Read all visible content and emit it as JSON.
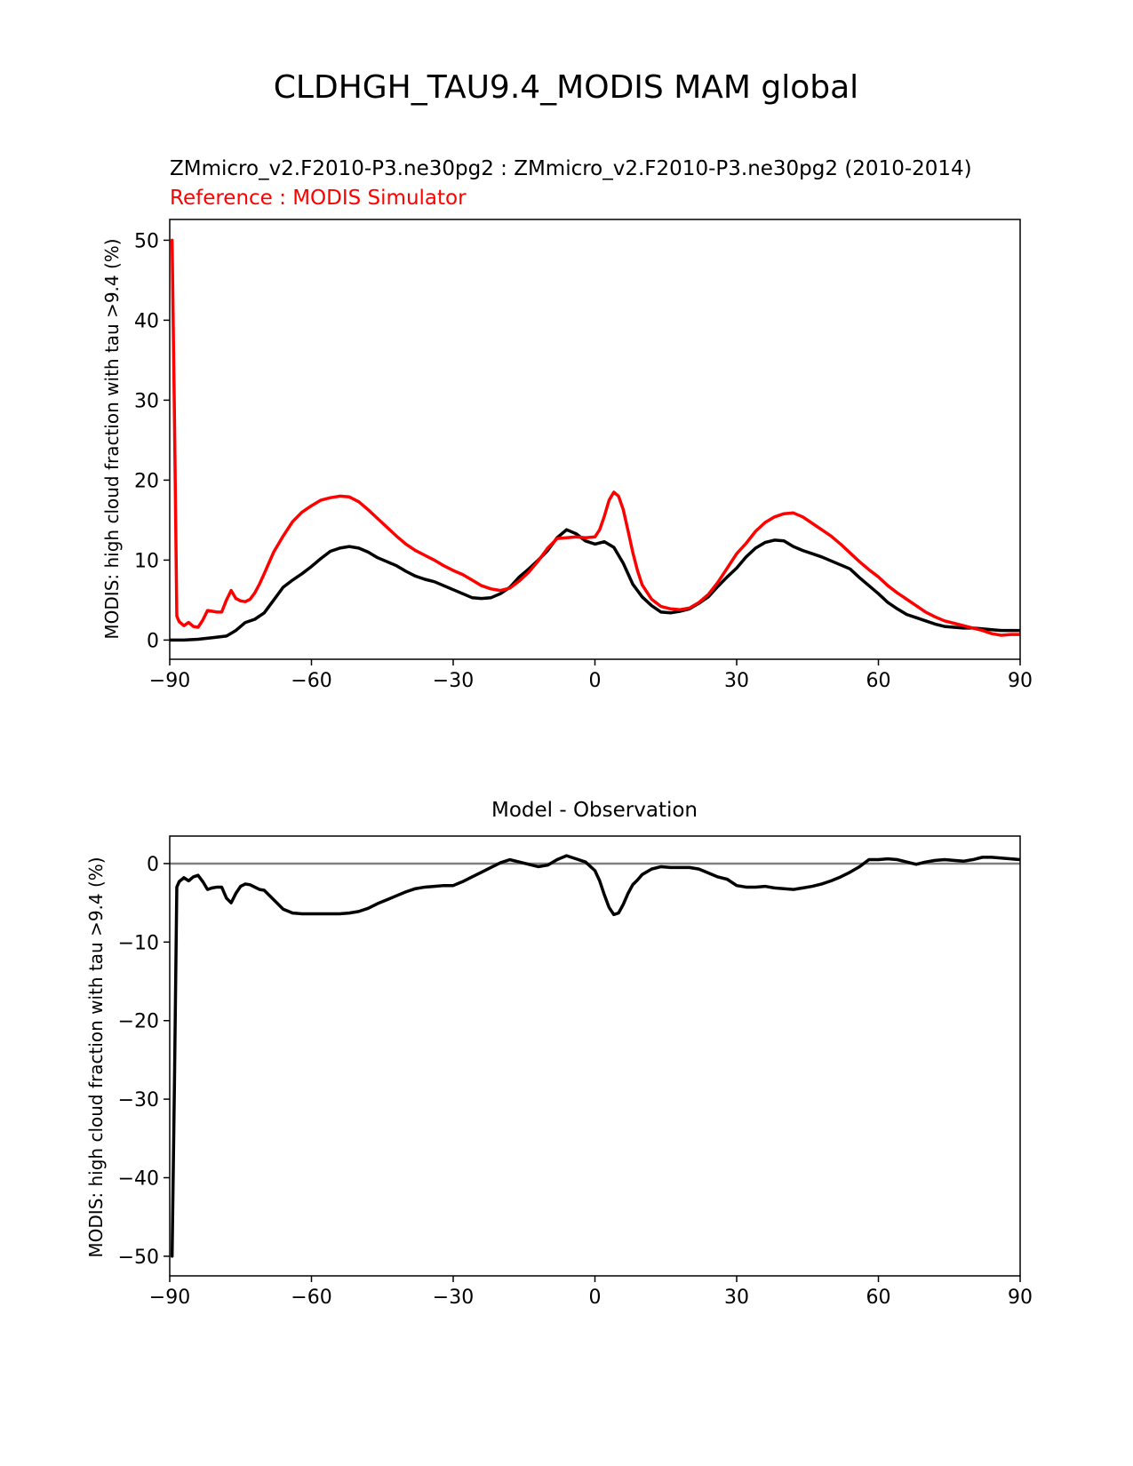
{
  "figure": {
    "suptitle": "CLDHGH_TAU9.4_MODIS MAM global"
  },
  "chart_data": [
    {
      "type": "line",
      "title_line1": "ZMmicro_v2.F2010-P3.ne30pg2 : ZMmicro_v2.F2010-P3.ne30pg2 (2010-2014)",
      "title_line2": "Reference : MODIS Simulator",
      "xlabel": "",
      "ylabel": "MODIS: high cloud fraction with tau >9.4 (%)",
      "xlim": [
        -90,
        90
      ],
      "ylim": [
        -2.4,
        52.6
      ],
      "xticks": [
        -90,
        -60,
        -30,
        0,
        30,
        60,
        90
      ],
      "xtick_labels": [
        "−90",
        "−60",
        "−30",
        "0",
        "30",
        "60",
        "90"
      ],
      "yticks": [
        0,
        10,
        20,
        30,
        40,
        50
      ],
      "ytick_labels": [
        "0",
        "10",
        "20",
        "30",
        "40",
        "50"
      ],
      "grid": false,
      "series": [
        {
          "color": "#000000",
          "x": [
            -90,
            -87,
            -84,
            -81,
            -78,
            -76,
            -74,
            -72,
            -70,
            -68,
            -66,
            -64,
            -62,
            -60,
            -58,
            -56,
            -54,
            -52,
            -50,
            -48,
            -46,
            -44,
            -42,
            -40,
            -38,
            -36,
            -34,
            -32,
            -30,
            -28,
            -26,
            -24,
            -22,
            -20,
            -18,
            -16,
            -14,
            -12,
            -10,
            -8,
            -6,
            -4,
            -2,
            0,
            2,
            4,
            6,
            8,
            10,
            12,
            14,
            16,
            18,
            20,
            22,
            24,
            26,
            28,
            30,
            32,
            34,
            36,
            38,
            40,
            42,
            44,
            46,
            48,
            50,
            52,
            54,
            56,
            58,
            60,
            62,
            64,
            66,
            68,
            70,
            72,
            74,
            76,
            78,
            80,
            82,
            84,
            86,
            88,
            90
          ],
          "y": [
            0,
            0,
            0.1,
            0.3,
            0.5,
            1.2,
            2.2,
            2.6,
            3.4,
            5,
            6.6,
            7.5,
            8.3,
            9.2,
            10.2,
            11.1,
            11.5,
            11.7,
            11.5,
            11,
            10.3,
            9.8,
            9.3,
            8.6,
            8,
            7.6,
            7.3,
            6.8,
            6.3,
            5.8,
            5.3,
            5.2,
            5.3,
            5.8,
            6.6,
            7.9,
            8.9,
            10,
            11.2,
            12.8,
            13.8,
            13.3,
            12.4,
            12,
            12.3,
            11.6,
            9.6,
            7,
            5.4,
            4.3,
            3.5,
            3.4,
            3.6,
            3.9,
            4.6,
            5.4,
            6.7,
            7.9,
            9,
            10.4,
            11.5,
            12.2,
            12.5,
            12.4,
            11.7,
            11.2,
            10.8,
            10.4,
            9.9,
            9.4,
            8.9,
            7.8,
            6.8,
            5.8,
            4.7,
            3.9,
            3.2,
            2.8,
            2.4,
            2,
            1.7,
            1.6,
            1.5,
            1.5,
            1.4,
            1.3,
            1.2,
            1.2,
            1.2
          ]
        },
        {
          "color": "#ff0000",
          "x": [
            -89.5,
            -89,
            -88.5,
            -88,
            -87,
            -86,
            -85,
            -84,
            -83,
            -82,
            -81,
            -80,
            -79,
            -78,
            -77,
            -76,
            -75,
            -74,
            -73,
            -72,
            -71,
            -70,
            -68,
            -66,
            -64,
            -62,
            -60,
            -58,
            -56,
            -54,
            -52,
            -50,
            -48,
            -46,
            -44,
            -42,
            -40,
            -38,
            -36,
            -34,
            -32,
            -30,
            -28,
            -26,
            -24,
            -22,
            -20,
            -18,
            -16,
            -14,
            -12,
            -10,
            -8,
            -6,
            -4,
            -2,
            0,
            1,
            2,
            3,
            4,
            5,
            6,
            7,
            8,
            9,
            10,
            12,
            14,
            16,
            18,
            20,
            22,
            24,
            26,
            28,
            30,
            32,
            34,
            36,
            38,
            40,
            42,
            44,
            46,
            48,
            50,
            52,
            54,
            56,
            58,
            60,
            62,
            64,
            66,
            68,
            70,
            72,
            74,
            76,
            78,
            80,
            82,
            84,
            86,
            88,
            90
          ],
          "y": [
            50,
            28,
            3,
            2.3,
            1.8,
            2.2,
            1.7,
            1.6,
            2.5,
            3.7,
            3.6,
            3.5,
            3.5,
            5,
            6.2,
            5.2,
            4.9,
            4.8,
            5.1,
            5.9,
            7,
            8.3,
            11,
            13,
            14.8,
            16,
            16.8,
            17.5,
            17.8,
            18,
            17.9,
            17.3,
            16.3,
            15.2,
            14.1,
            13,
            12,
            11.2,
            10.6,
            10,
            9.3,
            8.7,
            8.2,
            7.5,
            6.8,
            6.4,
            6.2,
            6.5,
            7.4,
            8.5,
            9.9,
            11.5,
            12.7,
            12.8,
            12.9,
            12.8,
            12.9,
            13.8,
            15.5,
            17.5,
            18.5,
            18,
            16.3,
            13.7,
            11,
            8.7,
            6.9,
            5.1,
            4.2,
            3.9,
            3.8,
            4,
            4.7,
            5.7,
            7.2,
            9,
            10.8,
            12.1,
            13.6,
            14.7,
            15.4,
            15.8,
            15.9,
            15.4,
            14.6,
            13.8,
            13,
            12,
            10.9,
            9.8,
            8.8,
            7.9,
            6.8,
            5.9,
            5.1,
            4.3,
            3.5,
            2.9,
            2.4,
            2.1,
            1.8,
            1.5,
            1.2,
            0.8,
            0.6,
            0.7,
            0.7
          ]
        }
      ]
    },
    {
      "type": "line",
      "title": "Model - Observation",
      "xlabel": "",
      "ylabel": "MODIS: high cloud fraction with tau >9.4 (%)",
      "xlim": [
        -90,
        90
      ],
      "ylim": [
        -52.5,
        3.5
      ],
      "xticks": [
        -90,
        -60,
        -30,
        0,
        30,
        60,
        90
      ],
      "xtick_labels": [
        "−90",
        "−60",
        "−30",
        "0",
        "30",
        "60",
        "90"
      ],
      "yticks": [
        0,
        -10,
        -20,
        -30,
        -40,
        -50
      ],
      "ytick_labels": [
        "0",
        "−10",
        "−20",
        "−30",
        "−40",
        "−50"
      ],
      "grid": false,
      "zero_line": {
        "y": 0,
        "color": "#808080"
      },
      "series": [
        {
          "color": "#000000",
          "x": [
            -89.5,
            -89,
            -88.5,
            -88,
            -87,
            -86,
            -85,
            -84,
            -83,
            -82,
            -81,
            -80,
            -79,
            -78,
            -77,
            -76,
            -75,
            -74,
            -73,
            -72,
            -71,
            -70,
            -68,
            -66,
            -64,
            -62,
            -60,
            -58,
            -56,
            -54,
            -52,
            -50,
            -48,
            -46,
            -44,
            -42,
            -40,
            -38,
            -36,
            -34,
            -32,
            -30,
            -28,
            -26,
            -24,
            -22,
            -20,
            -18,
            -16,
            -14,
            -12,
            -10,
            -8,
            -6,
            -4,
            -2,
            0,
            1,
            2,
            3,
            4,
            5,
            6,
            7,
            8,
            9,
            10,
            12,
            14,
            16,
            18,
            20,
            22,
            24,
            26,
            28,
            30,
            32,
            34,
            36,
            38,
            40,
            42,
            44,
            46,
            48,
            50,
            52,
            54,
            56,
            58,
            60,
            62,
            64,
            66,
            68,
            70,
            72,
            74,
            76,
            78,
            80,
            82,
            84,
            86,
            88,
            90
          ],
          "y": [
            -50,
            -28,
            -3,
            -2.3,
            -1.8,
            -2.2,
            -1.7,
            -1.5,
            -2.3,
            -3.3,
            -3.1,
            -3,
            -3,
            -4.4,
            -5,
            -3.8,
            -2.9,
            -2.6,
            -2.7,
            -3,
            -3.3,
            -3.4,
            -4.6,
            -5.8,
            -6.3,
            -6.4,
            -6.4,
            -6.4,
            -6.4,
            -6.4,
            -6.3,
            -6.1,
            -5.7,
            -5.1,
            -4.6,
            -4.1,
            -3.6,
            -3.2,
            -3,
            -2.9,
            -2.8,
            -2.8,
            -2.3,
            -1.7,
            -1.1,
            -0.5,
            0.1,
            0.5,
            0.2,
            -0.1,
            -0.4,
            -0.2,
            0.5,
            1,
            0.6,
            0.2,
            -0.9,
            -2.2,
            -4,
            -5.6,
            -6.5,
            -6.3,
            -5.2,
            -3.8,
            -2.7,
            -2.1,
            -1.4,
            -0.7,
            -0.4,
            -0.5,
            -0.5,
            -0.5,
            -0.7,
            -1.2,
            -1.7,
            -2,
            -2.8,
            -3,
            -3,
            -2.9,
            -3.1,
            -3.2,
            -3.3,
            -3.1,
            -2.9,
            -2.6,
            -2.2,
            -1.7,
            -1.1,
            -0.4,
            0.5,
            0.5,
            0.6,
            0.5,
            0.2,
            -0.1,
            0.2,
            0.4,
            0.5,
            0.4,
            0.3,
            0.5,
            0.8,
            0.8,
            0.7,
            0.6,
            0.5
          ]
        }
      ]
    }
  ]
}
